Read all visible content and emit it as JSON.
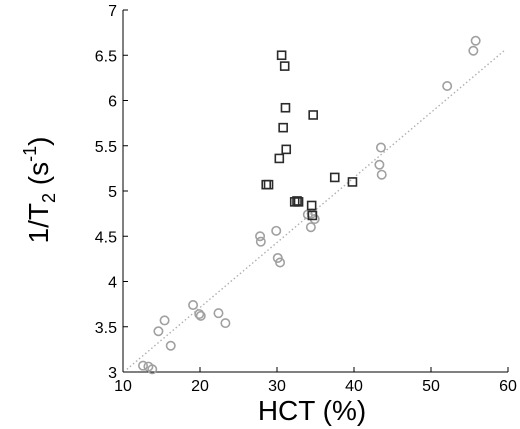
{
  "chart_data": {
    "type": "scatter",
    "xlabel": "HCT (%)",
    "ylabel": {
      "main": "1/T",
      "sub": "2",
      "unit_open": " (s",
      "sup": "-1",
      "unit_close": ")"
    },
    "xlim": [
      10,
      60
    ],
    "ylim": [
      3,
      7
    ],
    "x_ticks": [
      10,
      20,
      30,
      40,
      50,
      60
    ],
    "y_ticks": [
      3,
      3.5,
      4,
      4.5,
      5,
      5.5,
      6,
      6.5,
      7
    ],
    "x_tick_labels": [
      "10",
      "20",
      "30",
      "40",
      "50",
      "60"
    ],
    "y_tick_labels": [
      "3",
      "3.5",
      "4",
      "4.5",
      "5",
      "5.5",
      "6",
      "6.5",
      "7"
    ],
    "grid": false,
    "series": [
      {
        "marker": "circle",
        "color": "#a0a0a0",
        "points": [
          [
            12.6,
            3.07
          ],
          [
            13.3,
            3.06
          ],
          [
            13.8,
            3.03
          ],
          [
            14.6,
            3.45
          ],
          [
            15.4,
            3.57
          ],
          [
            16.2,
            3.29
          ],
          [
            19.1,
            3.74
          ],
          [
            19.9,
            3.64
          ],
          [
            20.1,
            3.62
          ],
          [
            22.4,
            3.65
          ],
          [
            23.3,
            3.54
          ],
          [
            27.8,
            4.5
          ],
          [
            27.9,
            4.44
          ],
          [
            29.9,
            4.56
          ],
          [
            30.1,
            4.26
          ],
          [
            30.4,
            4.21
          ],
          [
            34.0,
            4.74
          ],
          [
            34.4,
            4.6
          ],
          [
            34.5,
            4.75
          ],
          [
            34.9,
            4.69
          ],
          [
            43.3,
            5.29
          ],
          [
            43.5,
            5.48
          ],
          [
            43.6,
            5.18
          ],
          [
            52.1,
            6.16
          ],
          [
            55.5,
            6.55
          ],
          [
            55.8,
            6.66
          ]
        ]
      },
      {
        "marker": "square",
        "color": "#2b2b2b",
        "points": [
          [
            28.6,
            5.07
          ],
          [
            28.9,
            5.07
          ],
          [
            30.3,
            5.36
          ],
          [
            30.6,
            6.5
          ],
          [
            30.8,
            5.7
          ],
          [
            31.0,
            6.38
          ],
          [
            31.1,
            5.92
          ],
          [
            31.2,
            5.46
          ],
          [
            32.3,
            4.88
          ],
          [
            32.6,
            4.89
          ],
          [
            32.8,
            4.88
          ],
          [
            34.5,
            4.84
          ],
          [
            34.6,
            4.73
          ],
          [
            34.7,
            5.84
          ],
          [
            37.5,
            5.15
          ],
          [
            39.8,
            5.1
          ]
        ]
      }
    ],
    "trendline": {
      "style": "dotted",
      "color": "#b0b0b0",
      "x": [
        10.5,
        59.5
      ],
      "y": [
        3.03,
        6.55
      ]
    }
  }
}
